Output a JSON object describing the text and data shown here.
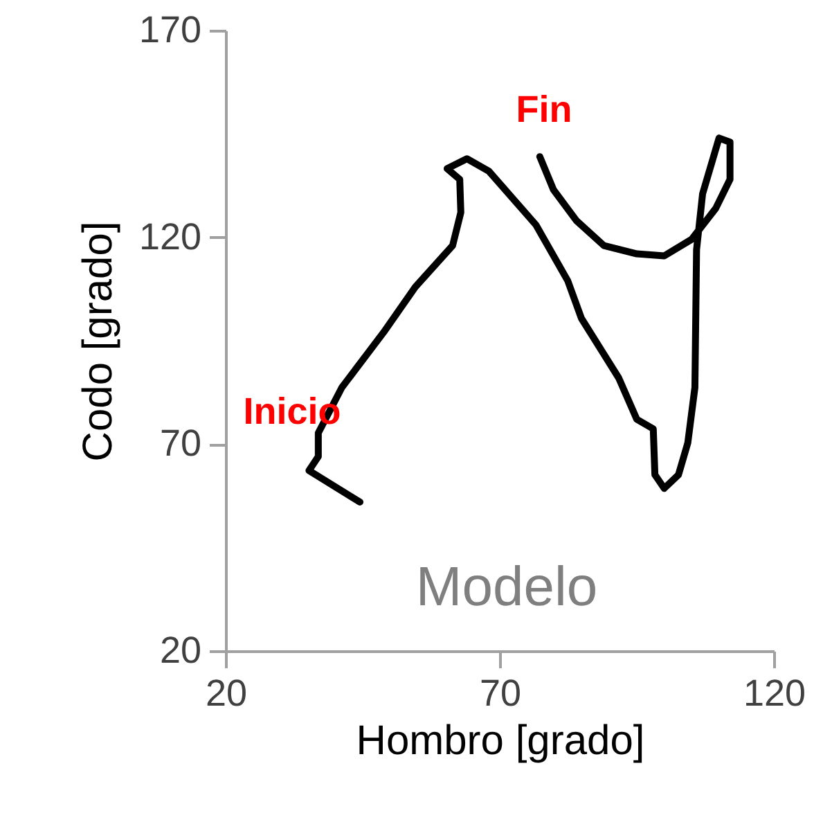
{
  "chart_data": {
    "type": "line",
    "xlabel": "Hombro [grado]",
    "ylabel": "Codo [grado]",
    "xlim": [
      20,
      120
    ],
    "xticks": [
      20,
      70,
      120
    ],
    "ylim": [
      20,
      170
    ],
    "yticks": [
      20,
      70,
      120,
      170
    ],
    "grid": false,
    "marker": "none",
    "line_style": "solid",
    "annotations": [
      "Inicio",
      "Fin",
      "Modelo"
    ],
    "series": [
      {
        "color": "#000000",
        "x": [
          44.5,
          35.2,
          36.9,
          36.9,
          41.2,
          48.8,
          54.6,
          61.4,
          62.9,
          62.7,
          60.4,
          64,
          68,
          76.6,
          82.4,
          84.9,
          91.7,
          95,
          98,
          98.3,
          100,
          102.6,
          104.3,
          105.6,
          105.9,
          107,
          110,
          112,
          112,
          109.4,
          105,
          100,
          95,
          89,
          84,
          79.8,
          77.3
        ],
        "values": [
          56,
          63.6,
          67,
          72.7,
          83.7,
          97,
          108,
          118,
          126,
          134,
          136.6,
          139,
          136,
          123,
          109.5,
          100.4,
          86,
          76,
          73.7,
          62.6,
          59.3,
          62.6,
          70.3,
          83.7,
          117,
          130.5,
          144,
          143,
          134,
          127,
          119.5,
          115.5,
          116,
          118,
          124,
          131.5,
          139.5
        ]
      }
    ]
  }
}
